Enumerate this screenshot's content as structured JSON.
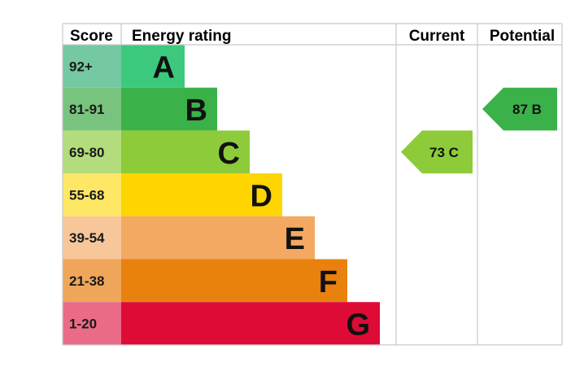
{
  "chart_data": {
    "type": "table",
    "headers": {
      "score": "Score",
      "energy_rating": "Energy rating",
      "current": "Current",
      "potential": "Potential"
    },
    "bands": [
      {
        "letter": "A",
        "score_range": "92+",
        "bar_color": "#3cc97d",
        "score_bg": "#75c9a2"
      },
      {
        "letter": "B",
        "score_range": "81-91",
        "bar_color": "#3bb14a",
        "score_bg": "#78c47e"
      },
      {
        "letter": "C",
        "score_range": "69-80",
        "bar_color": "#8dcb3a",
        "score_bg": "#b3dc7c"
      },
      {
        "letter": "D",
        "score_range": "55-68",
        "bar_color": "#fed500",
        "score_bg": "#ffe766"
      },
      {
        "letter": "E",
        "score_range": "39-54",
        "bar_color": "#f4a962",
        "score_bg": "#f7c79a"
      },
      {
        "letter": "F",
        "score_range": "21-38",
        "bar_color": "#e8810e",
        "score_bg": "#efa65a"
      },
      {
        "letter": "G",
        "score_range": "1-20",
        "bar_color": "#de0b36",
        "score_bg": "#ea6b86"
      }
    ],
    "current": {
      "value": 73,
      "letter": "C",
      "label": "73  C",
      "color": "#8dcb3a"
    },
    "potential": {
      "value": 87,
      "letter": "B",
      "label": "87  B",
      "color": "#3bb14a"
    }
  }
}
